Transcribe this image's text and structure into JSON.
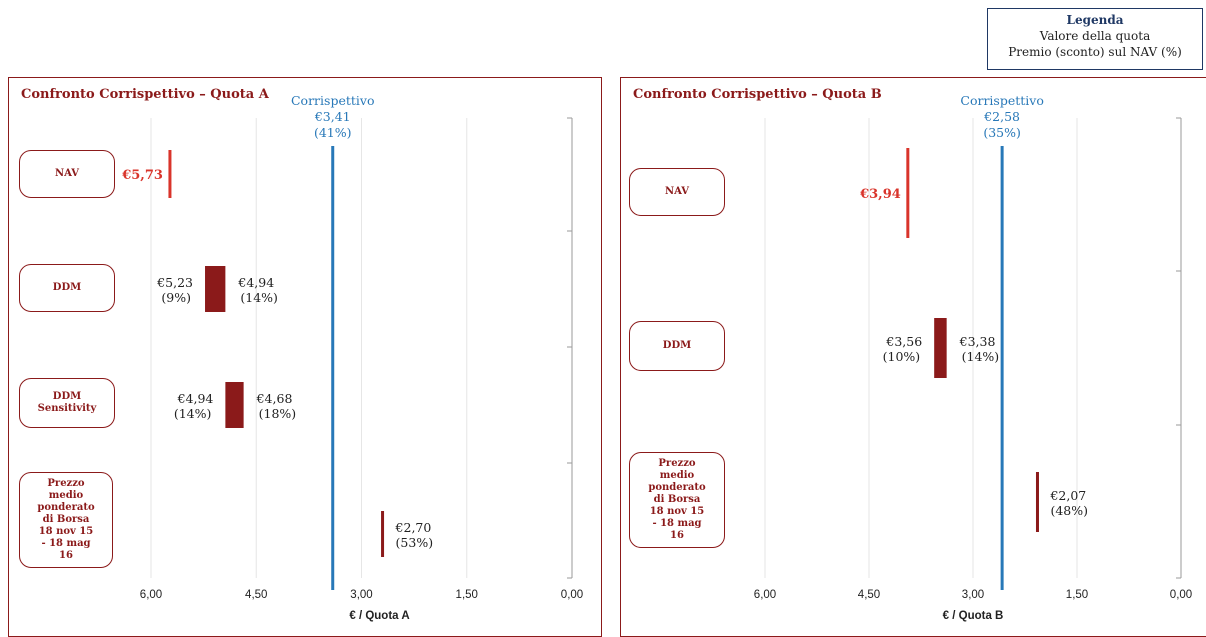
{
  "legend": {
    "title": "Legenda",
    "line1": "Valore della quota",
    "line2": "Premio (sconto) sul NAV (%)"
  },
  "colors": {
    "nav": "#d9342b",
    "bar": "#8b1a1a",
    "corrispettivo": "#2878b8",
    "border": "#8b1a1a"
  },
  "chart_data": [
    {
      "type": "bar",
      "orientation": "horizontal-range",
      "title": "Confronto Corrispettivo – Quota A",
      "xlabel": "€ / Quota A",
      "xlim": [
        0,
        7.2
      ],
      "x_reversed": true,
      "ticks": [
        "6,00",
        "4,50",
        "3,00",
        "1,50",
        "0,00"
      ],
      "tick_values": [
        6.0,
        4.5,
        3.0,
        1.5,
        0.0
      ],
      "corrispettivo": {
        "label": "Corrispettivo",
        "value": 3.41,
        "value_label": "€3,41",
        "pct_label": "(41%)"
      },
      "rows": [
        {
          "label": "NAV",
          "type": "nav",
          "value": 5.73,
          "value_label": "€5,73"
        },
        {
          "label": "DDM",
          "type": "range",
          "high": 5.23,
          "low": 4.94,
          "high_label": "€5,23",
          "high_pct": "(9%)",
          "low_label": "€4,94",
          "low_pct": "(14%)"
        },
        {
          "label": "DDM Sensitivity",
          "type": "range",
          "high": 4.94,
          "low": 4.68,
          "high_label": "€4,94",
          "high_pct": "(14%)",
          "low_label": "€4,68",
          "low_pct": "(18%)"
        },
        {
          "label": "Prezzo medio ponderato di Borsa 18 nov 15 - 18 mag 16",
          "type": "point",
          "value": 2.7,
          "value_label": "€2,70",
          "pct_label": "(53%)"
        }
      ]
    },
    {
      "type": "bar",
      "orientation": "horizontal-range",
      "title": "Confronto Corrispettivo – Quota B",
      "xlabel": "€ / Quota B",
      "xlim": [
        0,
        7.2
      ],
      "x_reversed": true,
      "ticks": [
        "6,00",
        "4,50",
        "3,00",
        "1,50",
        "0,00"
      ],
      "tick_values": [
        6.0,
        4.5,
        3.0,
        1.5,
        0.0
      ],
      "corrispettivo": {
        "label": "Corrispettivo",
        "value": 2.58,
        "value_label": "€2,58",
        "pct_label": "(35%)"
      },
      "rows": [
        {
          "label": "NAV",
          "type": "nav",
          "value": 3.94,
          "value_label": "€3,94"
        },
        {
          "label": "DDM",
          "type": "range",
          "high": 3.56,
          "low": 3.38,
          "high_label": "€3,56",
          "high_pct": "(10%)",
          "low_label": "€3,38",
          "low_pct": "(14%)"
        },
        {
          "label": "Prezzo medio ponderato di Borsa 18 nov 15 - 18 mag 16",
          "type": "point",
          "value": 2.07,
          "value_label": "€2,07",
          "pct_label": "(48%)"
        }
      ]
    }
  ]
}
